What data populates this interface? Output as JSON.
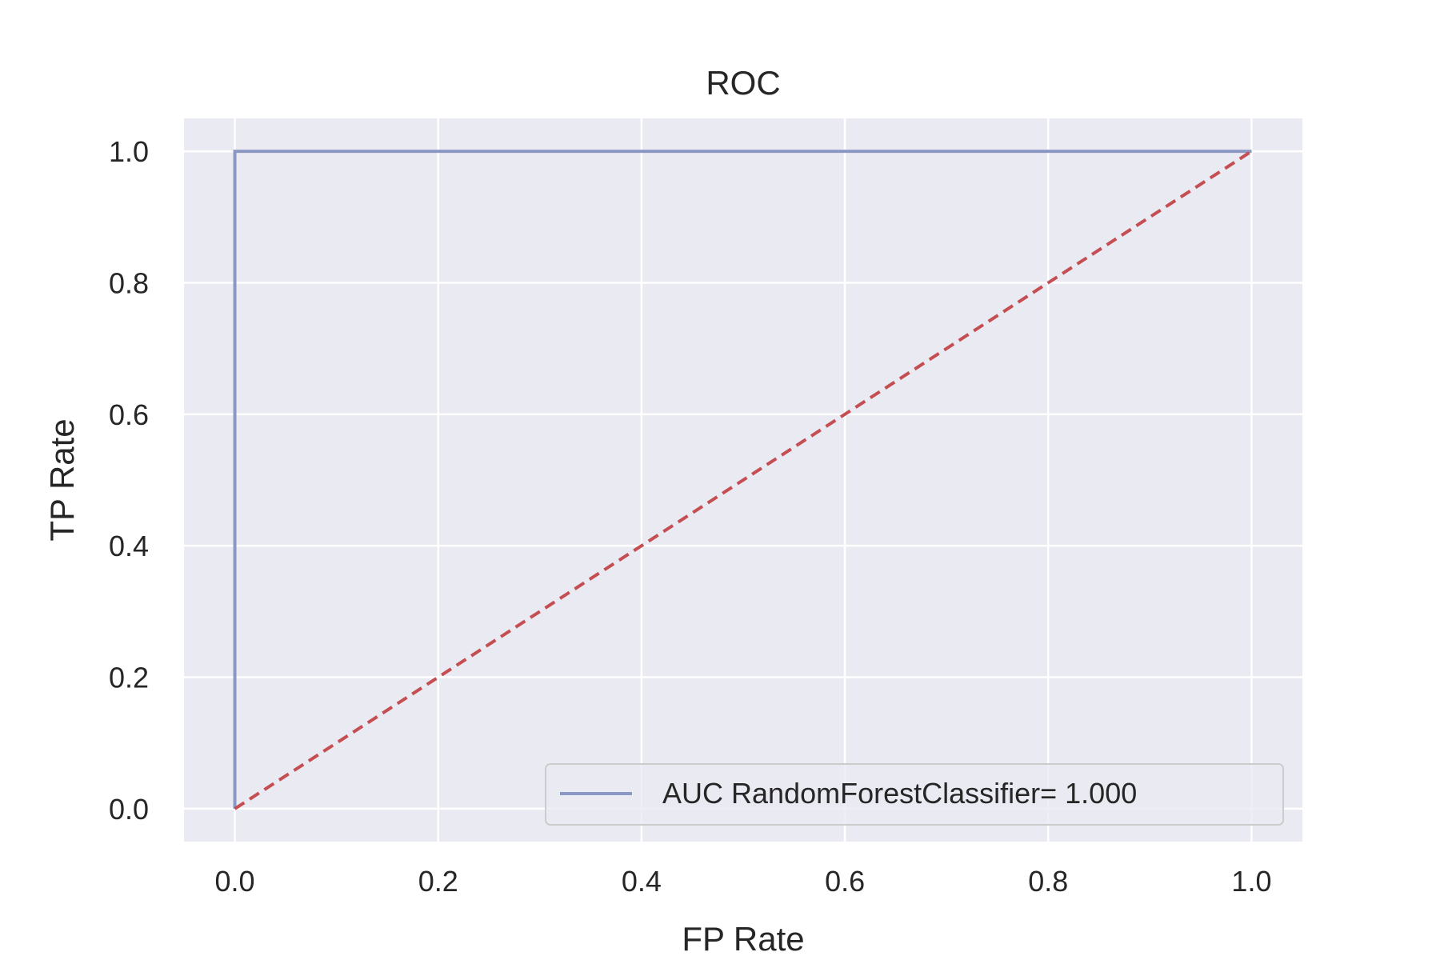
{
  "chart_data": {
    "type": "line",
    "title": "ROC",
    "xlabel": "FP Rate",
    "ylabel": "TP Rate",
    "xlim": [
      -0.05,
      1.05
    ],
    "ylim": [
      -0.05,
      1.05
    ],
    "xticks": [
      0.0,
      0.2,
      0.4,
      0.6,
      0.8,
      1.0
    ],
    "yticks": [
      0.0,
      0.2,
      0.4,
      0.6,
      0.8,
      1.0
    ],
    "xtick_labels": [
      "0.0",
      "0.2",
      "0.4",
      "0.6",
      "0.8",
      "1.0"
    ],
    "ytick_labels": [
      "0.0",
      "0.2",
      "0.4",
      "0.6",
      "0.8",
      "1.0"
    ],
    "grid": true,
    "legend_position": "lower-right",
    "series": [
      {
        "name": "AUC RandomForestClassifier= 1.000",
        "x": [
          0.0,
          0.0,
          1.0
        ],
        "y": [
          0.0,
          1.0,
          1.0
        ],
        "color": "#8c98c4",
        "style": "solid"
      },
      {
        "x": [
          0.0,
          1.0
        ],
        "y": [
          0.0,
          1.0
        ],
        "color": "#c44e52",
        "style": "dashed"
      }
    ],
    "colors": {
      "plot_background": "#eaeaf2",
      "grid": "#ffffff",
      "text": "#262626"
    }
  }
}
